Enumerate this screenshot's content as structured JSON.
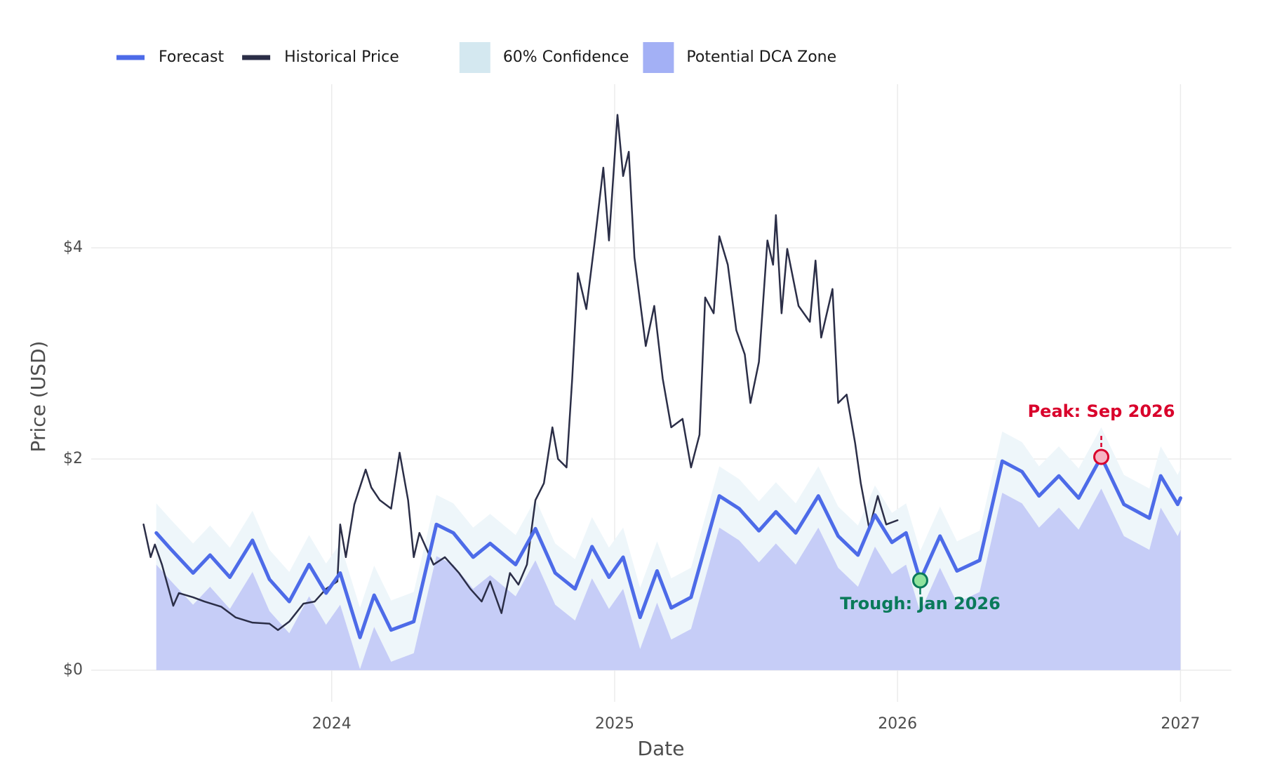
{
  "chart_data": {
    "type": "line",
    "xlabel": "Date",
    "ylabel": "Price (USD)",
    "xlim": [
      2023.15,
      2027.18
    ],
    "ylim": [
      -0.3,
      5.55
    ],
    "xticks": [
      2024,
      2025,
      2026,
      2027
    ],
    "yticks": [
      {
        "value": 0,
        "label": "$0"
      },
      {
        "value": 2,
        "label": "$2"
      },
      {
        "value": 4,
        "label": "$4"
      }
    ],
    "grid": true,
    "legend": "top",
    "series": [
      {
        "name": "Forecast",
        "kind": "line",
        "color": "#4d6be8",
        "width": 5,
        "x": [
          2023.38,
          2023.43,
          2023.51,
          2023.57,
          2023.64,
          2023.72,
          2023.78,
          2023.85,
          2023.92,
          2023.98,
          2024.03,
          2024.1,
          2024.15,
          2024.21,
          2024.29,
          2024.37,
          2024.43,
          2024.5,
          2024.56,
          2024.65,
          2024.72,
          2024.79,
          2024.86,
          2024.92,
          2024.98,
          2025.03,
          2025.09,
          2025.15,
          2025.2,
          2025.27,
          2025.37,
          2025.44,
          2025.51,
          2025.57,
          2025.64,
          2025.72,
          2025.79,
          2025.86,
          2025.92,
          2025.98,
          2026.03,
          2026.08,
          2026.15,
          2026.21,
          2026.29,
          2026.37,
          2026.44,
          2026.5,
          2026.57,
          2026.64,
          2026.72,
          2026.8,
          2026.89,
          2026.93,
          2026.99,
          2027.0
        ],
        "values": [
          1.3,
          1.15,
          0.92,
          1.09,
          0.88,
          1.23,
          0.86,
          0.65,
          1.0,
          0.73,
          0.92,
          0.31,
          0.71,
          0.38,
          0.46,
          1.38,
          1.3,
          1.07,
          1.2,
          1.0,
          1.34,
          0.92,
          0.77,
          1.17,
          0.88,
          1.07,
          0.5,
          0.94,
          0.59,
          0.69,
          1.65,
          1.53,
          1.32,
          1.5,
          1.3,
          1.65,
          1.27,
          1.09,
          1.47,
          1.21,
          1.3,
          0.85,
          1.27,
          0.94,
          1.04,
          1.98,
          1.88,
          1.65,
          1.84,
          1.63,
          2.02,
          1.57,
          1.44,
          1.84,
          1.57,
          1.63
        ]
      },
      {
        "name": "Historical Price",
        "kind": "line",
        "color": "#2b2e47",
        "width": 2.5,
        "x": [
          2023.335,
          2023.36,
          2023.375,
          2023.4,
          2023.44,
          2023.46,
          2023.51,
          2023.55,
          2023.61,
          2023.66,
          2023.72,
          2023.78,
          2023.81,
          2023.85,
          2023.9,
          2023.94,
          2023.98,
          2024.02,
          2024.03,
          2024.05,
          2024.08,
          2024.12,
          2024.14,
          2024.17,
          2024.21,
          2024.24,
          2024.27,
          2024.29,
          2024.31,
          2024.36,
          2024.4,
          2024.45,
          2024.49,
          2024.53,
          2024.56,
          2024.6,
          2024.63,
          2024.66,
          2024.69,
          2024.72,
          2024.75,
          2024.78,
          2024.8,
          2024.83,
          2024.85,
          2024.87,
          2024.9,
          2024.93,
          2024.96,
          2024.98,
          2025.01,
          2025.03,
          2025.05,
          2025.07,
          2025.11,
          2025.14,
          2025.17,
          2025.2,
          2025.24,
          2025.27,
          2025.3,
          2025.32,
          2025.35,
          2025.37,
          2025.4,
          2025.43,
          2025.46,
          2025.48,
          2025.51,
          2025.54,
          2025.56,
          2025.57,
          2025.59,
          2025.61,
          2025.65,
          2025.69,
          2025.71,
          2025.73,
          2025.77,
          2025.79,
          2025.82,
          2025.85,
          2025.87,
          2025.9,
          2025.93,
          2025.96,
          2026.0
        ],
        "values": [
          1.38,
          1.07,
          1.19,
          1.0,
          0.61,
          0.73,
          0.69,
          0.65,
          0.6,
          0.5,
          0.45,
          0.44,
          0.38,
          0.46,
          0.63,
          0.65,
          0.77,
          0.84,
          1.38,
          1.07,
          1.57,
          1.9,
          1.73,
          1.61,
          1.53,
          2.06,
          1.61,
          1.07,
          1.3,
          1.0,
          1.07,
          0.92,
          0.77,
          0.65,
          0.84,
          0.54,
          0.92,
          0.81,
          1.0,
          1.61,
          1.77,
          2.3,
          2.0,
          1.92,
          2.76,
          3.76,
          3.42,
          4.07,
          4.76,
          4.07,
          5.26,
          4.68,
          4.91,
          3.91,
          3.07,
          3.45,
          2.76,
          2.3,
          2.38,
          1.92,
          2.23,
          3.53,
          3.38,
          4.11,
          3.84,
          3.22,
          2.99,
          2.53,
          2.92,
          4.07,
          3.84,
          4.31,
          3.38,
          3.99,
          3.45,
          3.3,
          3.88,
          3.15,
          3.61,
          2.53,
          2.61,
          2.15,
          1.77,
          1.34,
          1.65,
          1.38,
          1.42
        ]
      },
      {
        "name": "60% Confidence",
        "kind": "band",
        "color": "#d4e8f0",
        "fill": "#eef6fa",
        "x": [
          2023.38,
          2023.43,
          2023.51,
          2023.57,
          2023.64,
          2023.72,
          2023.78,
          2023.85,
          2023.92,
          2023.98,
          2024.03,
          2024.1,
          2024.15,
          2024.21,
          2024.29,
          2024.37,
          2024.43,
          2024.5,
          2024.56,
          2024.65,
          2024.72,
          2024.79,
          2024.86,
          2024.92,
          2024.98,
          2025.03,
          2025.09,
          2025.15,
          2025.2,
          2025.27,
          2025.37,
          2025.44,
          2025.51,
          2025.57,
          2025.64,
          2025.72,
          2025.79,
          2025.86,
          2025.92,
          2025.98,
          2026.03,
          2026.08,
          2026.15,
          2026.21,
          2026.29,
          2026.37,
          2026.44,
          2026.5,
          2026.57,
          2026.64,
          2026.72,
          2026.8,
          2026.89,
          2026.93,
          2026.99,
          2027.0
        ],
        "upper": [
          1.58,
          1.43,
          1.2,
          1.37,
          1.16,
          1.51,
          1.14,
          0.93,
          1.28,
          1.01,
          1.2,
          0.59,
          0.99,
          0.66,
          0.74,
          1.66,
          1.58,
          1.35,
          1.48,
          1.28,
          1.62,
          1.2,
          1.05,
          1.45,
          1.16,
          1.35,
          0.78,
          1.22,
          0.87,
          0.97,
          1.93,
          1.81,
          1.6,
          1.78,
          1.58,
          1.93,
          1.55,
          1.37,
          1.75,
          1.49,
          1.58,
          1.13,
          1.55,
          1.22,
          1.32,
          2.26,
          2.16,
          1.93,
          2.12,
          1.91,
          2.3,
          1.85,
          1.72,
          2.12,
          1.85,
          1.91
        ],
        "lower": [
          1.0,
          0.85,
          0.62,
          0.79,
          0.58,
          0.93,
          0.56,
          0.35,
          0.7,
          0.43,
          0.62,
          0.01,
          0.41,
          0.08,
          0.16,
          1.08,
          1.0,
          0.77,
          0.9,
          0.7,
          1.04,
          0.62,
          0.47,
          0.87,
          0.58,
          0.77,
          0.2,
          0.64,
          0.29,
          0.39,
          1.35,
          1.23,
          1.02,
          1.2,
          1.0,
          1.35,
          0.97,
          0.79,
          1.17,
          0.91,
          1.0,
          0.55,
          0.97,
          0.64,
          0.74,
          1.68,
          1.58,
          1.35,
          1.54,
          1.33,
          1.72,
          1.27,
          1.14,
          1.54,
          1.27,
          1.33
        ]
      },
      {
        "name": "Potential DCA Zone",
        "kind": "area",
        "color": "#a3b0f5",
        "fill": "#c6cdf7",
        "x": [
          2023.38,
          2023.43,
          2023.51,
          2023.57,
          2023.64,
          2023.72,
          2023.78,
          2023.85,
          2023.92,
          2023.98,
          2024.03,
          2024.1,
          2024.15,
          2024.21,
          2024.29,
          2024.37,
          2024.43,
          2024.5,
          2024.56,
          2024.65,
          2024.72,
          2024.79,
          2024.86,
          2024.92,
          2024.98,
          2025.03,
          2025.09,
          2025.15,
          2025.2,
          2025.27,
          2025.37,
          2025.44,
          2025.51,
          2025.57,
          2025.64,
          2025.72,
          2025.79,
          2025.86,
          2025.92,
          2025.98,
          2026.03,
          2026.08,
          2026.15,
          2026.21,
          2026.29,
          2026.37,
          2026.44,
          2026.5,
          2026.57,
          2026.64,
          2026.72,
          2026.8,
          2026.89,
          2026.93,
          2026.99,
          2027.0
        ],
        "values": [
          1.0,
          0.85,
          0.62,
          0.79,
          0.58,
          0.93,
          0.56,
          0.35,
          0.7,
          0.43,
          0.62,
          0.01,
          0.41,
          0.08,
          0.16,
          1.08,
          1.0,
          0.77,
          0.9,
          0.7,
          1.04,
          0.62,
          0.47,
          0.87,
          0.58,
          0.77,
          0.2,
          0.64,
          0.29,
          0.39,
          1.35,
          1.23,
          1.02,
          1.2,
          1.0,
          1.35,
          0.97,
          0.79,
          1.17,
          0.91,
          1.0,
          0.55,
          0.97,
          0.64,
          0.74,
          1.68,
          1.58,
          1.35,
          1.54,
          1.33,
          1.72,
          1.27,
          1.14,
          1.54,
          1.27,
          1.33
        ]
      }
    ],
    "annotations": [
      {
        "text": "Peak: Sep 2026",
        "x": 2026.72,
        "y": 2.02,
        "color": "#d9002b",
        "marker": "#f7b3c2",
        "position": "above"
      },
      {
        "text": "Trough: Jan 2026",
        "x": 2026.08,
        "y": 0.85,
        "color": "#0a7a5a",
        "marker": "#8fe39d",
        "position": "below"
      }
    ]
  }
}
